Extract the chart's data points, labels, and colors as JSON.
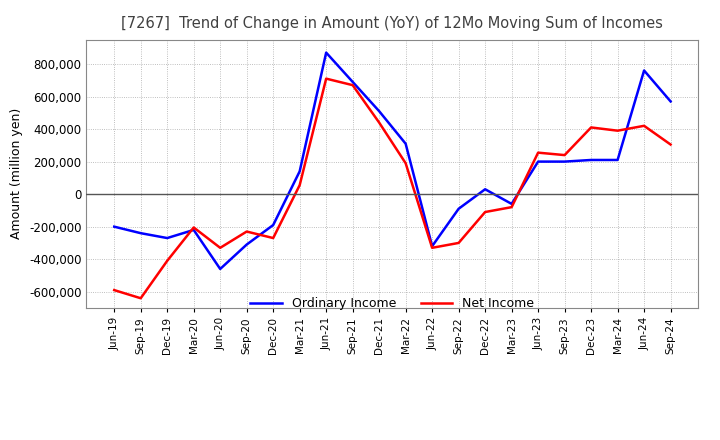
{
  "title": "[7267]  Trend of Change in Amount (YoY) of 12Mo Moving Sum of Incomes",
  "ylabel": "Amount (million yen)",
  "ylim": [
    -700000,
    950000
  ],
  "yticks": [
    -600000,
    -400000,
    -200000,
    0,
    200000,
    400000,
    600000,
    800000
  ],
  "x_labels": [
    "Jun-19",
    "Sep-19",
    "Dec-19",
    "Mar-20",
    "Jun-20",
    "Sep-20",
    "Dec-20",
    "Mar-21",
    "Jun-21",
    "Sep-21",
    "Dec-21",
    "Mar-22",
    "Jun-22",
    "Sep-22",
    "Dec-22",
    "Mar-23",
    "Jun-23",
    "Sep-23",
    "Dec-23",
    "Mar-24",
    "Jun-24",
    "Sep-24"
  ],
  "ordinary_income": [
    -200000,
    -240000,
    -270000,
    -220000,
    -460000,
    -310000,
    -190000,
    140000,
    870000,
    690000,
    510000,
    310000,
    -320000,
    -90000,
    30000,
    -60000,
    200000,
    200000,
    210000,
    210000,
    760000,
    570000
  ],
  "net_income": [
    -590000,
    -640000,
    -410000,
    -205000,
    -330000,
    -230000,
    -270000,
    55000,
    710000,
    670000,
    440000,
    190000,
    -330000,
    -300000,
    -110000,
    -80000,
    255000,
    240000,
    410000,
    390000,
    420000,
    305000
  ],
  "ordinary_color": "#0000ff",
  "net_color": "#ff0000",
  "background_color": "#ffffff",
  "title_color": "#404040",
  "grid_color": "#aaaaaa",
  "legend_labels": [
    "Ordinary Income",
    "Net Income"
  ]
}
